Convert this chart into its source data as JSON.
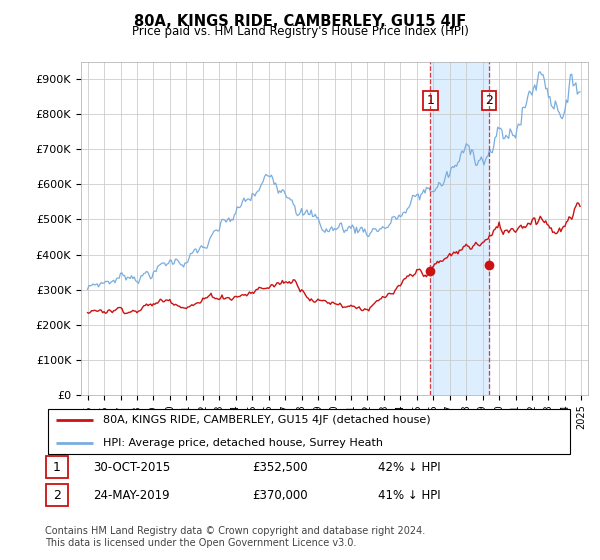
{
  "title": "80A, KINGS RIDE, CAMBERLEY, GU15 4JF",
  "subtitle": "Price paid vs. HM Land Registry's House Price Index (HPI)",
  "ylabel_ticks": [
    "£0",
    "£100K",
    "£200K",
    "£300K",
    "£400K",
    "£500K",
    "£600K",
    "£700K",
    "£800K",
    "£900K"
  ],
  "ytick_values": [
    0,
    100000,
    200000,
    300000,
    400000,
    500000,
    600000,
    700000,
    800000,
    900000
  ],
  "ylim": [
    0,
    950000
  ],
  "xlim_left": 1994.6,
  "xlim_right": 2025.4,
  "sale1_x": 2015.83,
  "sale1_y": 352500,
  "sale2_x": 2019.39,
  "sale2_y": 370000,
  "shaded_color": "#ddeeff",
  "hpi_color": "#7aadde",
  "price_color": "#cc1111",
  "legend_line1": "80A, KINGS RIDE, CAMBERLEY, GU15 4JF (detached house)",
  "legend_line2": "HPI: Average price, detached house, Surrey Heath",
  "note1_date": "30-OCT-2015",
  "note1_price": "£352,500",
  "note1_hpi": "42% ↓ HPI",
  "note2_date": "24-MAY-2019",
  "note2_price": "£370,000",
  "note2_hpi": "41% ↓ HPI",
  "footnote": "Contains HM Land Registry data © Crown copyright and database right 2024.\nThis data is licensed under the Open Government Licence v3.0."
}
